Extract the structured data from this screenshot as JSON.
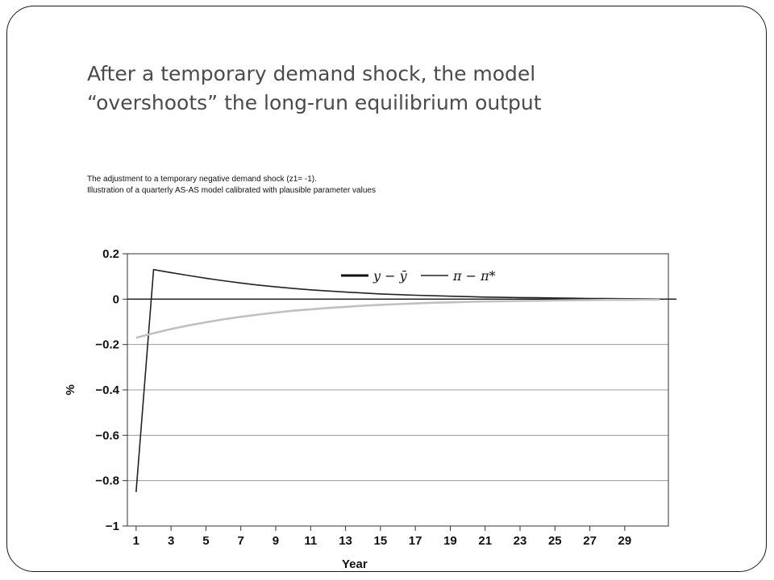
{
  "slide": {
    "title_line1": "After a temporary demand shock, the model",
    "title_line2": "“overshoots” the long-run equilibrium output",
    "caption_line1": "The adjustment to a temporary negative demand shock (z1= -1).",
    "caption_line2": "Illustration of a quarterly AS-AS model calibrated with plausible parameter values"
  },
  "chart_data": {
    "type": "line",
    "xlabel": "Year",
    "ylabel": "%",
    "xlim": [
      0.5,
      31.5
    ],
    "ylim": [
      -1,
      0.2
    ],
    "x_ticks": [
      "1",
      "3",
      "5",
      "7",
      "9",
      "11",
      "13",
      "15",
      "17",
      "19",
      "21",
      "23",
      "25",
      "27",
      "29"
    ],
    "y_ticks": [
      "0.2",
      "0",
      "−0.2",
      "−0.4",
      "−0.6",
      "−0.8",
      "−1"
    ],
    "y_tick_values": [
      0.2,
      0,
      -0.2,
      -0.4,
      -0.6,
      -0.8,
      -1
    ],
    "grid": "horizontal",
    "legend": "top-center",
    "x": [
      1,
      2,
      3,
      4,
      5,
      6,
      7,
      8,
      9,
      10,
      11,
      12,
      13,
      14,
      15,
      16,
      17,
      18,
      19,
      20,
      21,
      22,
      23,
      24,
      25,
      26,
      27,
      28,
      29,
      30,
      31
    ],
    "series": [
      {
        "name": "y − ȳ",
        "color": "#222222",
        "values": [
          -0.85,
          0.13,
          0.117,
          0.104,
          0.092,
          0.081,
          0.071,
          0.062,
          0.054,
          0.047,
          0.041,
          0.036,
          0.031,
          0.027,
          0.023,
          0.02,
          0.017,
          0.015,
          0.013,
          0.011,
          0.009,
          0.008,
          0.007,
          0.006,
          0.005,
          0.004,
          0.003,
          0.003,
          0.002,
          0.002,
          0.001
        ]
      },
      {
        "name": "π − π*",
        "color": "#c0c0c0",
        "values": [
          -0.17,
          -0.15,
          -0.132,
          -0.116,
          -0.102,
          -0.089,
          -0.078,
          -0.068,
          -0.059,
          -0.051,
          -0.045,
          -0.039,
          -0.034,
          -0.029,
          -0.025,
          -0.022,
          -0.019,
          -0.016,
          -0.014,
          -0.012,
          -0.01,
          -0.009,
          -0.008,
          -0.007,
          -0.006,
          -0.005,
          -0.004,
          -0.003,
          -0.003,
          -0.002,
          -0.002
        ]
      }
    ]
  }
}
